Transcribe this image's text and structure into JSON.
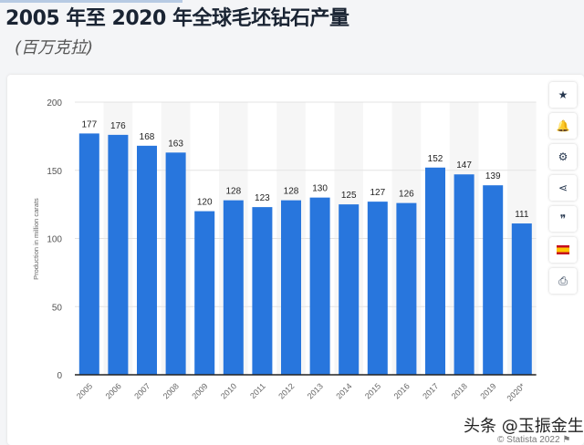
{
  "title": "2005 年至 2020 年全球毛坯钻石产量",
  "subtitle": "(百万克拉)",
  "toolbar": [
    {
      "icon": "star-icon",
      "glyph": "★"
    },
    {
      "icon": "bell-icon",
      "glyph": "🔔"
    },
    {
      "icon": "gear-icon",
      "glyph": "⚙"
    },
    {
      "icon": "share-icon",
      "glyph": "⋖"
    },
    {
      "icon": "quote-icon",
      "glyph": "❞"
    },
    {
      "icon": "flag-spain-icon",
      "glyph": ""
    },
    {
      "icon": "print-icon",
      "glyph": "⎙"
    }
  ],
  "watermark": "头条 @玉振金生",
  "copyright": "© Statista 2022",
  "chart_data": {
    "type": "bar",
    "categories": [
      "2005",
      "2006",
      "2007",
      "2008",
      "2009",
      "2010",
      "2011",
      "2012",
      "2013",
      "2014",
      "2015",
      "2016",
      "2017",
      "2018",
      "2019",
      "2020*"
    ],
    "values": [
      177,
      176,
      168,
      163,
      120,
      128,
      123,
      128,
      130,
      125,
      127,
      126,
      152,
      147,
      139,
      111
    ],
    "ylabel": "Production in million carats",
    "ylim": [
      0,
      200
    ],
    "yticks": [
      0,
      50,
      100,
      150,
      200
    ],
    "bar_color": "#2876dd",
    "grid": true
  }
}
